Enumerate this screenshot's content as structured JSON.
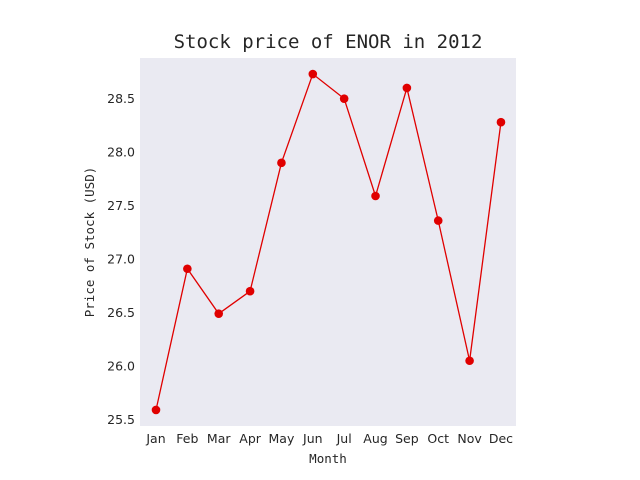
{
  "chart_data": {
    "type": "line",
    "title": "Stock price of ENOR in 2012",
    "xlabel": "Month",
    "ylabel": "Price of Stock (USD)",
    "categories": [
      "Jan",
      "Feb",
      "Mar",
      "Apr",
      "May",
      "Jun",
      "Jul",
      "Aug",
      "Sep",
      "Oct",
      "Nov",
      "Dec"
    ],
    "values": [
      25.59,
      26.91,
      26.49,
      26.7,
      27.9,
      28.73,
      28.5,
      27.59,
      28.6,
      27.36,
      26.05,
      28.28
    ],
    "ylim": [
      25.44,
      28.88
    ],
    "yticks": [
      "25.5",
      "26.0",
      "26.5",
      "27.0",
      "27.5",
      "28.0",
      "28.5"
    ],
    "grid": false,
    "colors": {
      "line": "#e00000",
      "marker": "#e00000",
      "plot_background": "#eaeaf2"
    }
  }
}
